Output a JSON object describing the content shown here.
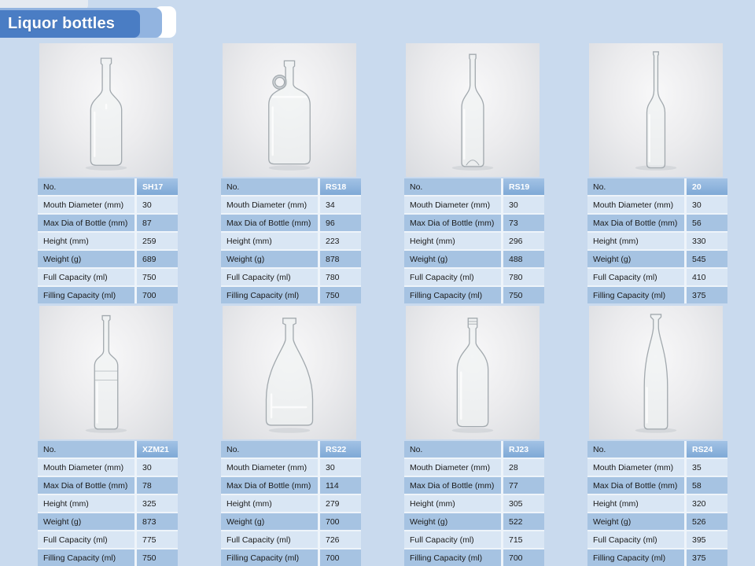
{
  "header": {
    "title": "Liquor bottles"
  },
  "colors": {
    "page_bg": "#c9daee",
    "banner": "#4a7dc4",
    "banner_mid": "#92b4e0",
    "row_dark": "#a6c3e2",
    "row_light": "#d9e6f4",
    "id_cell_top": "#a2c2e5",
    "id_cell_bottom": "#7fa9d6",
    "id_text": "#ffffff"
  },
  "spec_labels": [
    "No.",
    "Mouth Diameter (mm)",
    "Max Dia of Bottle (mm)",
    "Height (mm)",
    "Weight (g)",
    "Full Capacity (ml)",
    "Filling Capacity (ml)"
  ],
  "products": [
    {
      "id": "SH17",
      "bottle_style": "whiskey",
      "specs": [
        "30",
        "87",
        "259",
        "689",
        "750",
        "700"
      ]
    },
    {
      "id": "RS18",
      "bottle_style": "jug",
      "specs": [
        "34",
        "96",
        "223",
        "878",
        "780",
        "750"
      ]
    },
    {
      "id": "RS19",
      "bottle_style": "slim",
      "specs": [
        "30",
        "73",
        "296",
        "488",
        "780",
        "750"
      ]
    },
    {
      "id": "20",
      "bottle_style": "tall-slim",
      "specs": [
        "30",
        "56",
        "330",
        "545",
        "410",
        "375"
      ]
    },
    {
      "id": "XZM21",
      "bottle_style": "bordeaux",
      "specs": [
        "30",
        "78",
        "325",
        "873",
        "775",
        "750"
      ]
    },
    {
      "id": "RS22",
      "bottle_style": "bell",
      "specs": [
        "30",
        "114",
        "279",
        "700",
        "726",
        "700"
      ]
    },
    {
      "id": "RJ23",
      "bottle_style": "spirit",
      "specs": [
        "28",
        "77",
        "305",
        "522",
        "715",
        "700"
      ]
    },
    {
      "id": "RS24",
      "bottle_style": "cone",
      "specs": [
        "35",
        "58",
        "320",
        "526",
        "395",
        "375"
      ]
    }
  ]
}
